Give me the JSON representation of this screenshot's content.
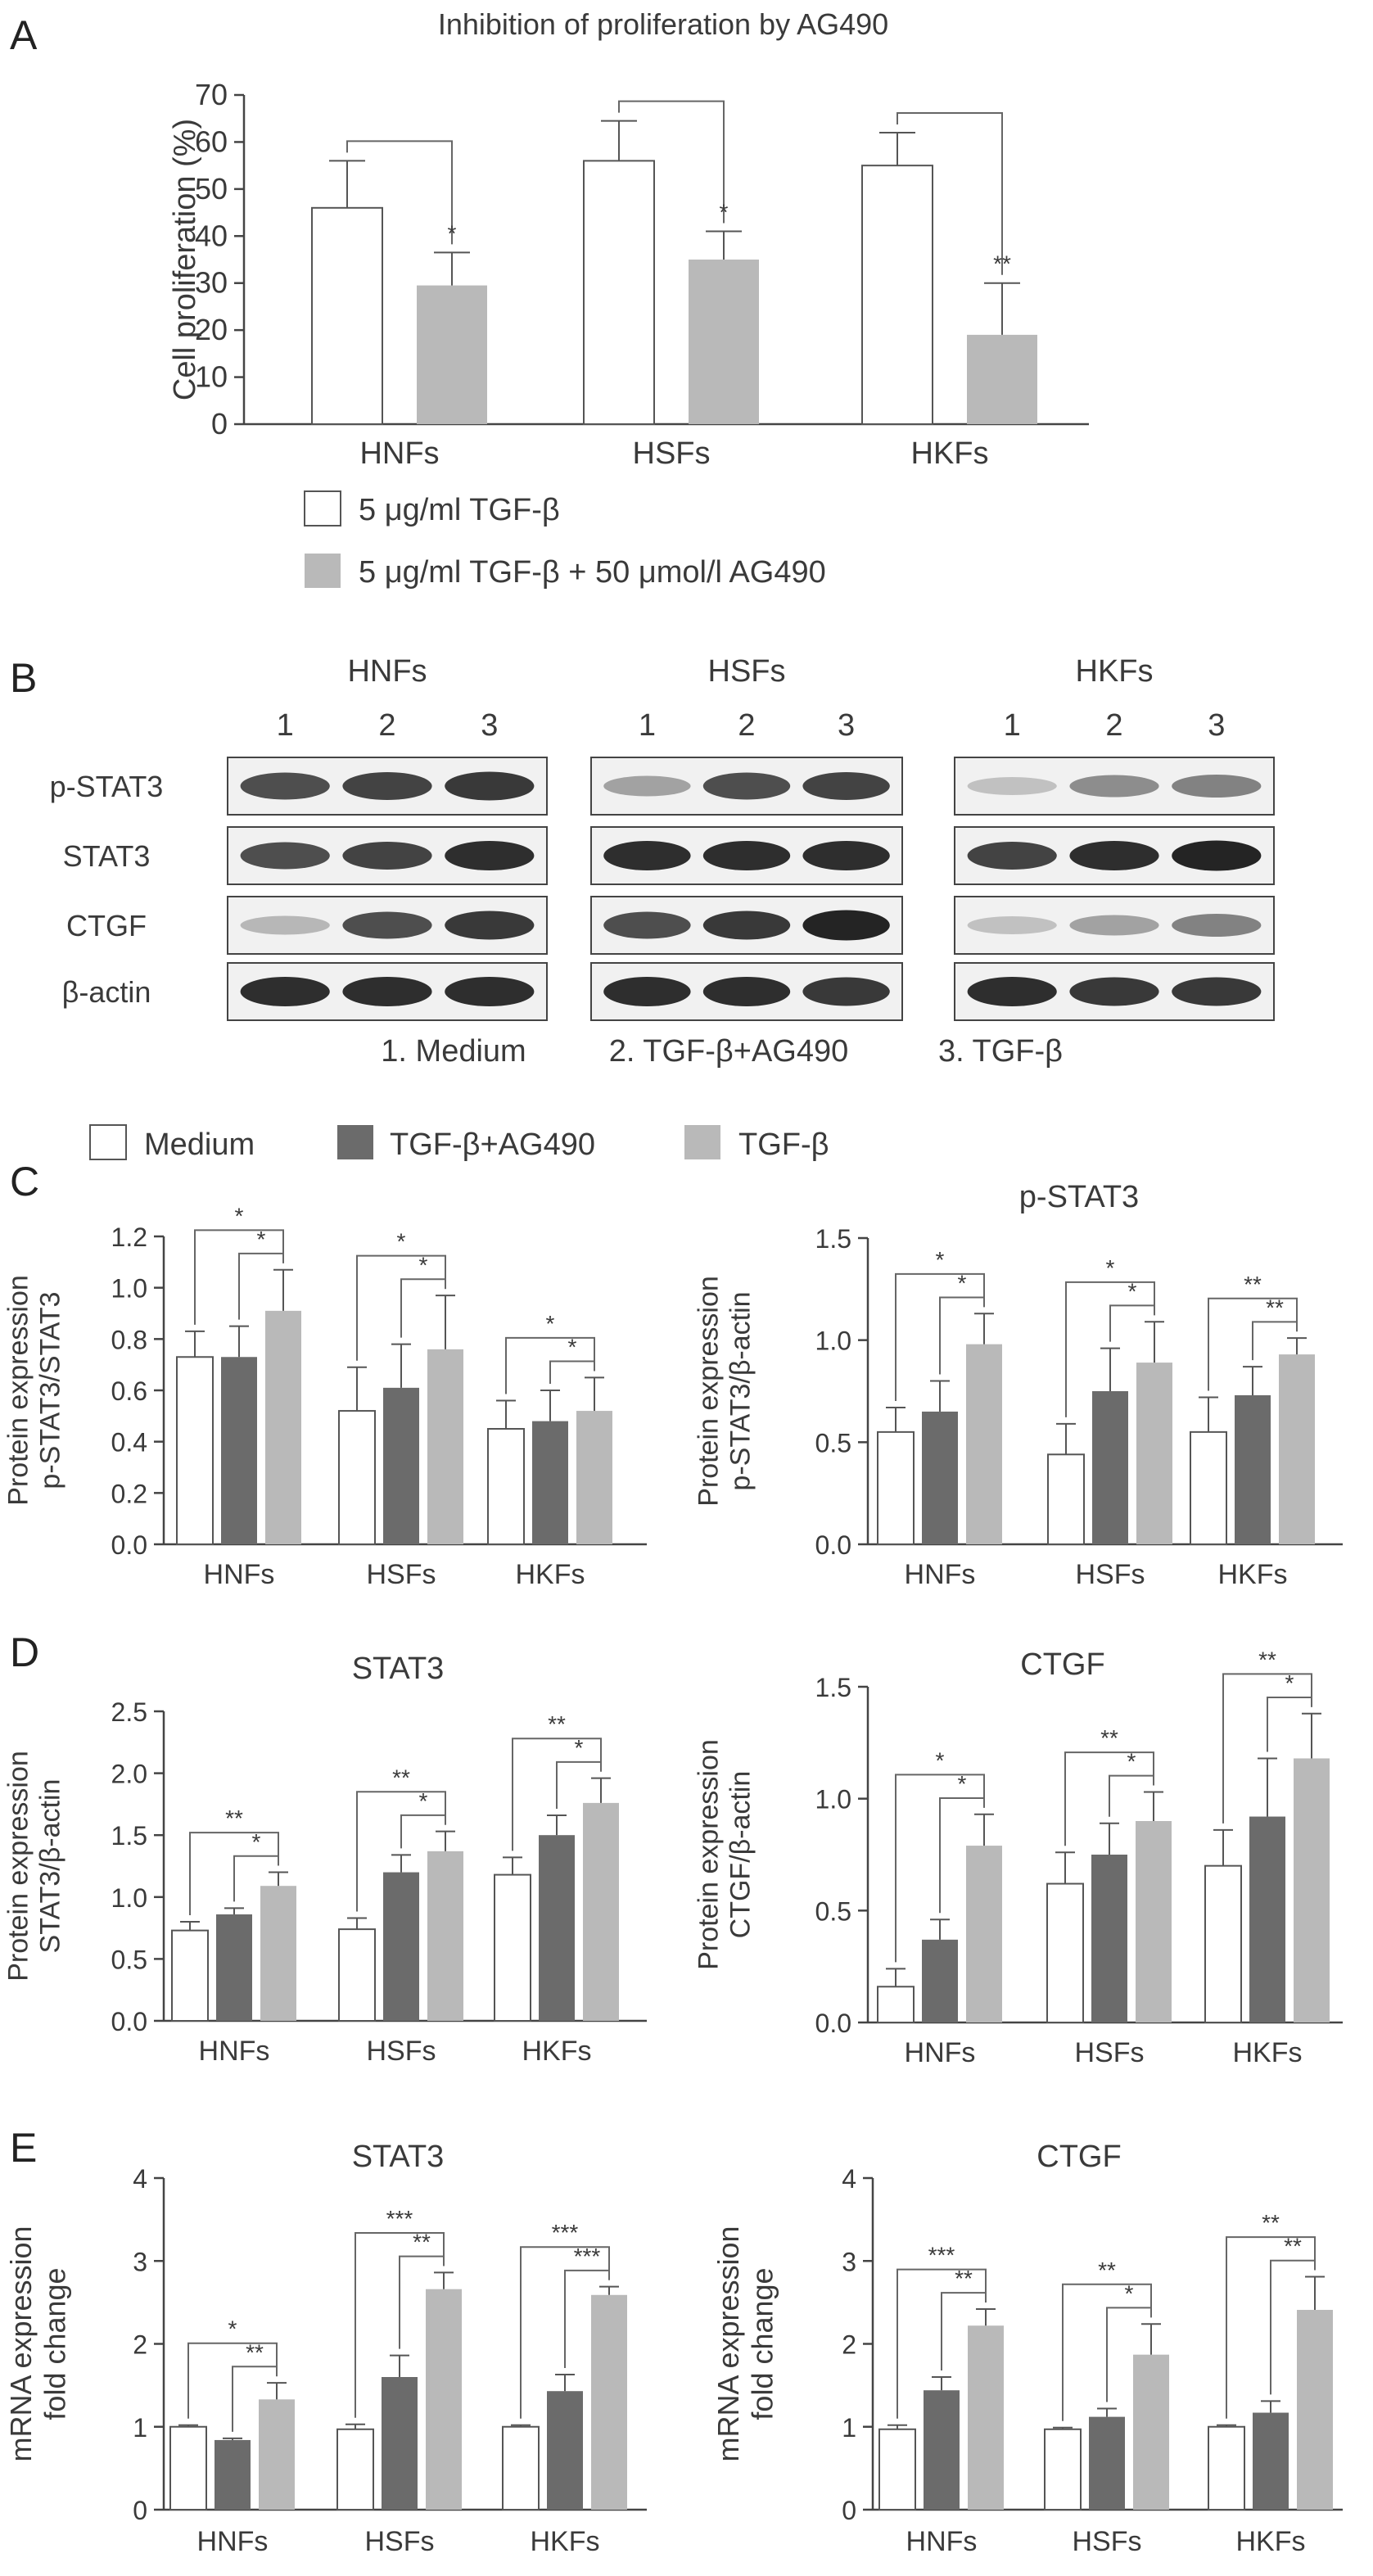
{
  "panel_labels": [
    "A",
    "B",
    "C",
    "D",
    "E"
  ],
  "colors": {
    "white_fill": "#ffffff",
    "dark_fill": "#6b6b6b",
    "light_fill": "#b9b9b9",
    "edge": "#555555"
  },
  "chart_data": [
    {
      "id": "A",
      "type": "bar",
      "title": "Inhibition of proliferation by AG490",
      "ylabel": "Cell proliferation (%)",
      "xlabel": "",
      "ylim": [
        0,
        70
      ],
      "yticks": [
        0,
        10,
        20,
        30,
        40,
        50,
        60,
        70
      ],
      "categories": [
        "HNFs",
        "HSFs",
        "HKFs"
      ],
      "series": [
        {
          "name": "5 μg/ml TGF-β",
          "values": [
            46,
            56,
            55
          ],
          "errors": [
            10,
            8.5,
            7
          ],
          "style": "white"
        },
        {
          "name": "5 μg/ml TGF-β + 50 μmol/l AG490",
          "values": [
            29.5,
            35,
            19
          ],
          "errors": [
            7,
            6,
            11
          ],
          "style": "light"
        }
      ],
      "significance": [
        "*",
        "*",
        "**"
      ]
    },
    {
      "id": "C1",
      "type": "bar",
      "title": "",
      "ylabel": "Protein expression\np-STAT3/STAT3",
      "ylim": [
        0,
        1.2
      ],
      "yticks": [
        "0.0",
        "0.2",
        "0.4",
        "0.6",
        "0.8",
        "1.0",
        "1.2"
      ],
      "categories": [
        "HNFs",
        "HSFs",
        "HKFs"
      ],
      "series": [
        {
          "name": "Medium",
          "values": [
            0.73,
            0.52,
            0.45
          ],
          "errors": [
            0.1,
            0.17,
            0.11
          ]
        },
        {
          "name": "TGF-β+AG490",
          "values": [
            0.73,
            0.61,
            0.48
          ],
          "errors": [
            0.12,
            0.17,
            0.12
          ]
        },
        {
          "name": "TGF-β",
          "values": [
            0.91,
            0.76,
            0.52
          ],
          "errors": [
            0.16,
            0.21,
            0.13
          ]
        }
      ],
      "significance": [
        [
          "*",
          "*"
        ],
        [
          "*",
          "*"
        ],
        [
          "*",
          "*"
        ]
      ]
    },
    {
      "id": "C2",
      "type": "bar",
      "title": "p-STAT3",
      "ylabel": "Protein expression\np-STAT3/β-actin",
      "ylim": [
        0,
        1.5
      ],
      "yticks": [
        "0.0",
        "0.5",
        "1.0",
        "1.5"
      ],
      "categories": [
        "HNFs",
        "HSFs",
        "HKFs"
      ],
      "series": [
        {
          "name": "Medium",
          "values": [
            0.55,
            0.44,
            0.55
          ],
          "errors": [
            0.12,
            0.15,
            0.17
          ]
        },
        {
          "name": "TGF-β+AG490",
          "values": [
            0.65,
            0.75,
            0.73
          ],
          "errors": [
            0.15,
            0.21,
            0.14
          ]
        },
        {
          "name": "TGF-β",
          "values": [
            0.98,
            0.89,
            0.93
          ],
          "errors": [
            0.15,
            0.2,
            0.08
          ]
        }
      ],
      "significance": [
        [
          "*",
          "*"
        ],
        [
          "*",
          "*"
        ],
        [
          "**",
          "**"
        ]
      ]
    },
    {
      "id": "D1",
      "type": "bar",
      "title": "STAT3",
      "ylabel": "Protein expression\nSTAT3/β-actin",
      "ylim": [
        0,
        2.5
      ],
      "yticks": [
        "0.0",
        "0.5",
        "1.0",
        "1.5",
        "2.0",
        "2.5"
      ],
      "categories": [
        "HNFs",
        "HSFs",
        "HKFs"
      ],
      "series": [
        {
          "name": "Medium",
          "values": [
            0.73,
            0.74,
            1.18
          ],
          "errors": [
            0.07,
            0.09,
            0.14
          ]
        },
        {
          "name": "TGF-β+AG490",
          "values": [
            0.86,
            1.2,
            1.5
          ],
          "errors": [
            0.05,
            0.14,
            0.16
          ]
        },
        {
          "name": "TGF-β",
          "values": [
            1.09,
            1.37,
            1.76
          ],
          "errors": [
            0.11,
            0.16,
            0.2
          ]
        }
      ],
      "significance": [
        [
          "**",
          "*"
        ],
        [
          "**",
          "*"
        ],
        [
          "**",
          "*"
        ]
      ]
    },
    {
      "id": "D2",
      "type": "bar",
      "title": "CTGF",
      "ylabel": "Protein expression\nCTGF/β-actin",
      "ylim": [
        0,
        1.5
      ],
      "yticks": [
        "0.0",
        "0.5",
        "1.0",
        "1.5"
      ],
      "categories": [
        "HNFs",
        "HSFs",
        "HKFs"
      ],
      "series": [
        {
          "name": "Medium",
          "values": [
            0.16,
            0.62,
            0.7
          ],
          "errors": [
            0.08,
            0.14,
            0.16
          ]
        },
        {
          "name": "TGF-β+AG490",
          "values": [
            0.37,
            0.75,
            0.92
          ],
          "errors": [
            0.09,
            0.14,
            0.26
          ]
        },
        {
          "name": "TGF-β",
          "values": [
            0.79,
            0.9,
            1.18
          ],
          "errors": [
            0.14,
            0.13,
            0.2
          ]
        }
      ],
      "significance": [
        [
          "*",
          "*"
        ],
        [
          "**",
          "*"
        ],
        [
          "**",
          "*"
        ]
      ]
    },
    {
      "id": "E1",
      "type": "bar",
      "title": "STAT3",
      "ylabel": "mRNA expression\nfold change",
      "ylim": [
        0,
        4
      ],
      "yticks": [
        "0",
        "1",
        "2",
        "3",
        "4"
      ],
      "categories": [
        "HNFs",
        "HSFs",
        "HKFs"
      ],
      "series": [
        {
          "name": "Medium",
          "values": [
            1.0,
            0.97,
            1.0
          ],
          "errors": [
            0.02,
            0.06,
            0.02
          ]
        },
        {
          "name": "TGF-β+AG490",
          "values": [
            0.84,
            1.6,
            1.43
          ],
          "errors": [
            0.02,
            0.26,
            0.2
          ]
        },
        {
          "name": "TGF-β",
          "values": [
            1.33,
            2.66,
            2.59
          ],
          "errors": [
            0.2,
            0.2,
            0.1
          ]
        }
      ],
      "significance": [
        [
          "*",
          "**"
        ],
        [
          "***",
          "**"
        ],
        [
          "***",
          "***"
        ]
      ]
    },
    {
      "id": "E2",
      "type": "bar",
      "title": "CTGF",
      "ylabel": "mRNA expression\nfold change",
      "ylim": [
        0,
        4
      ],
      "yticks": [
        "0",
        "1",
        "2",
        "3",
        "4"
      ],
      "categories": [
        "HNFs",
        "HSFs",
        "HKFs"
      ],
      "series": [
        {
          "name": "Medium",
          "values": [
            0.97,
            0.97,
            1.0
          ],
          "errors": [
            0.05,
            0.02,
            0.02
          ]
        },
        {
          "name": "TGF-β+AG490",
          "values": [
            1.44,
            1.12,
            1.17
          ],
          "errors": [
            0.16,
            0.1,
            0.14
          ]
        },
        {
          "name": "TGF-β",
          "values": [
            2.22,
            1.87,
            2.41
          ],
          "errors": [
            0.2,
            0.37,
            0.4
          ]
        }
      ],
      "significance": [
        [
          "***",
          "**"
        ],
        [
          "**",
          "*"
        ],
        [
          "**",
          "**"
        ]
      ]
    }
  ],
  "legend_A": [
    "5 μg/ml TGF-β",
    "5 μg/ml TGF-β + 50 μmol/l AG490"
  ],
  "legend_C": [
    "Medium",
    "TGF-β+AG490",
    "TGF-β"
  ],
  "western_blot": {
    "groups": [
      "HNFs",
      "HSFs",
      "HKFs"
    ],
    "lanes": [
      "1",
      "2",
      "3"
    ],
    "rows": [
      "p-STAT3",
      "STAT3",
      "CTGF",
      "β-actin"
    ],
    "lane_key": [
      "1. Medium",
      "2. TGF-β+AG490",
      "3. TGF-β"
    ],
    "band_intensity": [
      [
        [
          0.75,
          0.8,
          0.85
        ],
        [
          0.35,
          0.75,
          0.8
        ],
        [
          0.2,
          0.45,
          0.5
        ]
      ],
      [
        [
          0.75,
          0.8,
          0.9
        ],
        [
          0.9,
          0.9,
          0.9
        ],
        [
          0.8,
          0.9,
          0.95
        ]
      ],
      [
        [
          0.25,
          0.75,
          0.85
        ],
        [
          0.75,
          0.85,
          0.95
        ],
        [
          0.2,
          0.35,
          0.5
        ]
      ],
      [
        [
          0.9,
          0.9,
          0.9
        ],
        [
          0.9,
          0.9,
          0.85
        ],
        [
          0.9,
          0.85,
          0.85
        ]
      ]
    ]
  }
}
